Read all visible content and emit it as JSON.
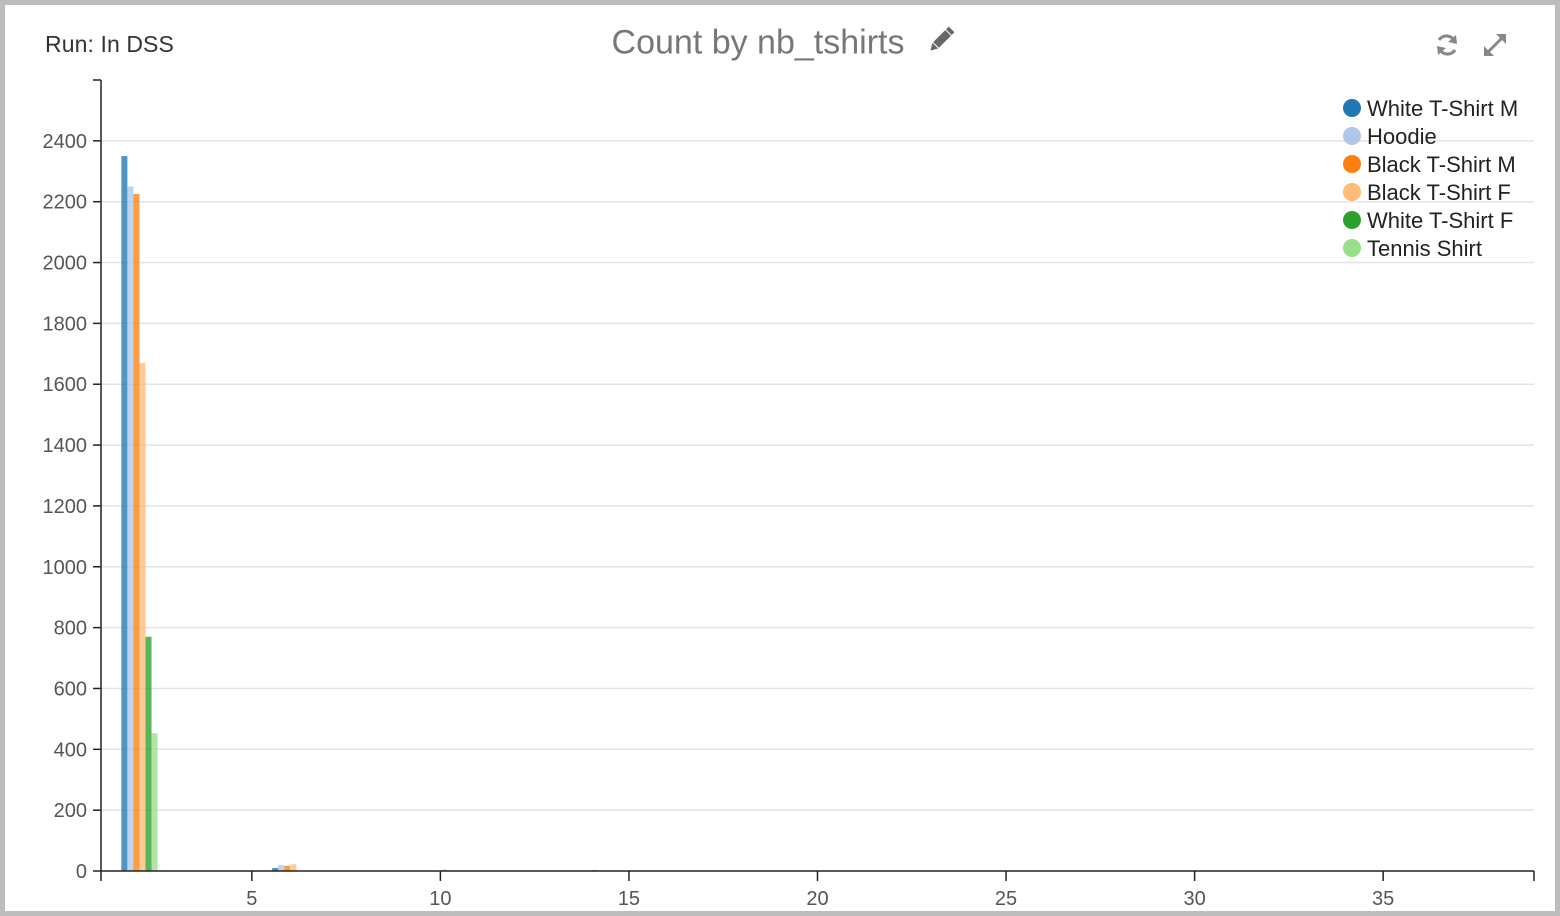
{
  "header": {
    "run_label": "Run: In DSS",
    "title": "Count by nb_tshirts"
  },
  "icons": {
    "edit": "pencil-icon",
    "refresh": "refresh-icon",
    "expand": "expand-icon"
  },
  "chart_data": {
    "type": "bar",
    "title": "Count by nb_tshirts",
    "xlabel": "",
    "ylabel": "",
    "xlim": [
      1,
      39
    ],
    "ylim": [
      0,
      2600
    ],
    "xticks": [
      5,
      10,
      15,
      20,
      25,
      30,
      35
    ],
    "yticks": [
      0,
      200,
      400,
      600,
      800,
      1000,
      1200,
      1400,
      1600,
      1800,
      2000,
      2200,
      2400
    ],
    "grid": true,
    "legend_position": "top-right",
    "categories": [
      2,
      3,
      4,
      5,
      6,
      7,
      8,
      9,
      10,
      11,
      12,
      13,
      14,
      15,
      16
    ],
    "series": [
      {
        "name": "White T-Shirt M",
        "color": "#1f77b4",
        "values": [
          2350,
          0,
          0,
          0,
          10,
          0,
          0,
          0,
          0,
          0,
          0,
          0,
          0,
          0,
          0
        ]
      },
      {
        "name": "Hoodie",
        "color": "#aec7e8",
        "values": [
          2250,
          0,
          0,
          0,
          20,
          0,
          0,
          0,
          0,
          0,
          0,
          0,
          0,
          0,
          0
        ]
      },
      {
        "name": "Black T-Shirt M",
        "color": "#ff7f0e",
        "values": [
          2225,
          0,
          0,
          0,
          17,
          0,
          0,
          0,
          0,
          0,
          0,
          0,
          0,
          0,
          0
        ]
      },
      {
        "name": "Black T-Shirt F",
        "color": "#ffbb78",
        "values": [
          1670,
          0,
          0,
          0,
          22,
          0,
          0,
          0,
          5,
          0,
          0,
          0,
          4,
          0,
          0
        ]
      },
      {
        "name": "White T-Shirt F",
        "color": "#2ca02c",
        "values": [
          770,
          0,
          0,
          0,
          0,
          0,
          0,
          0,
          0,
          0,
          0,
          0,
          0,
          0,
          0
        ]
      },
      {
        "name": "Tennis Shirt",
        "color": "#98df8a",
        "values": [
          453,
          0,
          0,
          0,
          0,
          0,
          0,
          0,
          0,
          0,
          0,
          0,
          0,
          0,
          0
        ]
      }
    ]
  }
}
